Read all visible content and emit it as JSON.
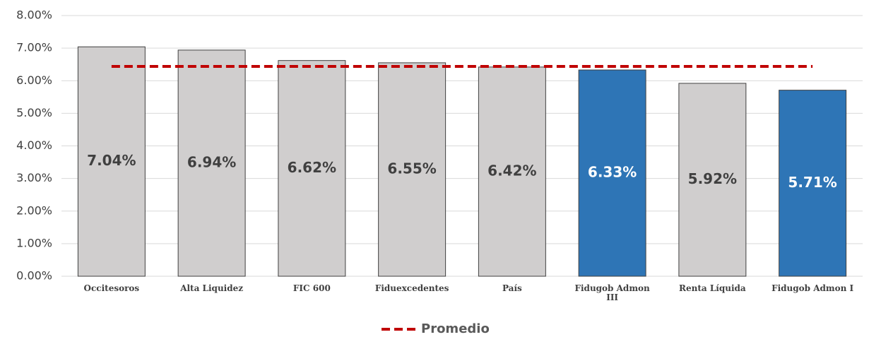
{
  "chart_data": {
    "type": "bar",
    "categories": [
      "Occitesoros",
      "Alta Liquidez",
      "FIC 600",
      "Fiduexcedentes",
      "País",
      "Fidugob Admon III",
      "Renta Líquida",
      "Fidugob Admon I"
    ],
    "values": [
      7.04,
      6.94,
      6.62,
      6.55,
      6.42,
      6.33,
      5.92,
      5.71
    ],
    "value_labels": [
      "7.04%",
      "6.94%",
      "6.62%",
      "6.55%",
      "6.42%",
      "6.33%",
      "5.92%",
      "5.71%"
    ],
    "colors": [
      "#d0cece",
      "#d0cece",
      "#d0cece",
      "#d0cece",
      "#d0cece",
      "#2e75b6",
      "#d0cece",
      "#2e75b6"
    ],
    "average": {
      "name": "Promedio",
      "value": 6.44,
      "color": "#c00000"
    },
    "ylim": [
      0,
      8
    ],
    "yticks": [
      {
        "value": 0,
        "label": "0.00%"
      },
      {
        "value": 1,
        "label": "1.00%"
      },
      {
        "value": 2,
        "label": "2.00%"
      },
      {
        "value": 3,
        "label": "3.00%"
      },
      {
        "value": 4,
        "label": "4.00%"
      },
      {
        "value": 5,
        "label": "5.00%"
      },
      {
        "value": 6,
        "label": "6.00%"
      },
      {
        "value": 7,
        "label": "7.00%"
      },
      {
        "value": 8,
        "label": "8.00%"
      }
    ],
    "grid": true
  }
}
